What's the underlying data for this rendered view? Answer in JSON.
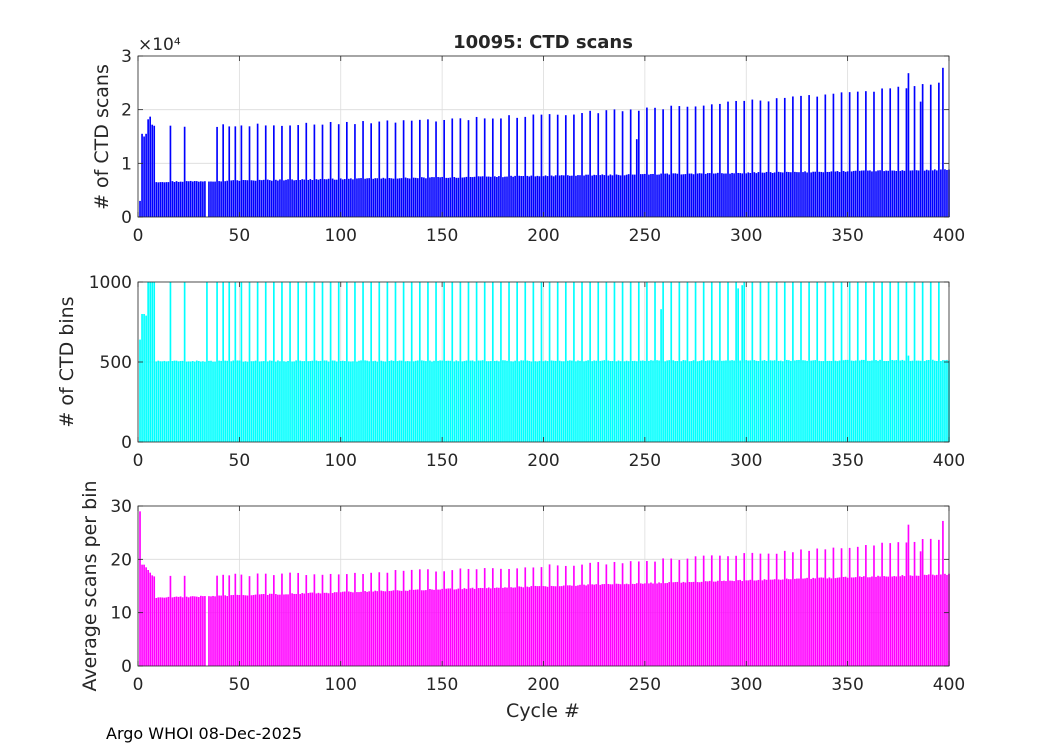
{
  "figure": {
    "footer": "Argo WHOI 08-Dec-2025"
  },
  "chart_data": [
    {
      "type": "bar",
      "title": "10095: CTD scans",
      "xlabel": "",
      "ylabel": "# of CTD scans",
      "xlim": [
        0,
        400
      ],
      "ylim": [
        0,
        3
      ],
      "xticks": [
        0,
        50,
        100,
        150,
        200,
        250,
        300,
        350,
        400
      ],
      "yticks": [
        0,
        1,
        2,
        3
      ],
      "yticklabels": [
        "0",
        "1",
        "2",
        "3"
      ],
      "exponent_label": "×10⁴",
      "color": "#0000ff",
      "grid": true,
      "series_description": "cycles 1-400; mostly ~0.65-0.88 (×10^4) rising with cycle, with periodic spikes ~1.7 rising to ~2.8",
      "base": {
        "start": 0.65,
        "end": 0.88
      },
      "spike": {
        "start": 1.7,
        "end": 2.5
      },
      "early_values": [
        {
          "x": 1,
          "v": 0.3
        },
        {
          "x": 2,
          "v": 1.55
        },
        {
          "x": 3,
          "v": 1.5
        },
        {
          "x": 4,
          "v": 1.55
        },
        {
          "x": 5,
          "v": 1.82
        },
        {
          "x": 6,
          "v": 1.87
        },
        {
          "x": 7,
          "v": 1.72
        },
        {
          "x": 8,
          "v": 1.7
        }
      ],
      "notable": [
        {
          "x": 246,
          "v": 1.45
        },
        {
          "x": 380,
          "v": 2.68
        },
        {
          "x": 386,
          "v": 2.15
        },
        {
          "x": 397,
          "v": 2.78
        }
      ]
    },
    {
      "type": "bar",
      "title": "",
      "xlabel": "",
      "ylabel": "# of CTD bins",
      "xlim": [
        0,
        400
      ],
      "ylim": [
        0,
        1000
      ],
      "xticks": [
        0,
        50,
        100,
        150,
        200,
        250,
        300,
        350,
        400
      ],
      "yticks": [
        0,
        500,
        1000
      ],
      "yticklabels": [
        "0",
        "500",
        "1000"
      ],
      "color": "#00ffff",
      "grid": true,
      "series_description": "mostly ~505 bins per cycle with periodic spikes clipped at top (>1000)",
      "base": {
        "start": 505,
        "end": 510
      },
      "spike": {
        "start": 1100,
        "end": 1100
      },
      "early_values": [
        {
          "x": 1,
          "v": 640
        },
        {
          "x": 2,
          "v": 800
        },
        {
          "x": 3,
          "v": 800
        },
        {
          "x": 4,
          "v": 790
        },
        {
          "x": 5,
          "v": 1100
        },
        {
          "x": 6,
          "v": 1100
        },
        {
          "x": 7,
          "v": 1100
        },
        {
          "x": 8,
          "v": 1100
        }
      ],
      "notable": [
        {
          "x": 258,
          "v": 830
        },
        {
          "x": 296,
          "v": 960
        },
        {
          "x": 298,
          "v": 980
        },
        {
          "x": 380,
          "v": 540
        }
      ]
    },
    {
      "type": "bar",
      "title": "",
      "xlabel": "Cycle #",
      "ylabel": "Average scans per bin",
      "xlim": [
        0,
        400
      ],
      "ylim": [
        0,
        30
      ],
      "xticks": [
        0,
        50,
        100,
        150,
        200,
        250,
        300,
        350,
        400
      ],
      "yticks": [
        0,
        10,
        20,
        30
      ],
      "yticklabels": [
        "0",
        "10",
        "20",
        "30"
      ],
      "color": "#ff00ff",
      "grid": true,
      "series_description": "mostly ~12.7-17.2 rising with cycle, with periodic spikes ~17 rising to ~27",
      "base": {
        "start": 12.7,
        "end": 17.2
      },
      "spike": {
        "start": 17.0,
        "end": 24.0
      },
      "early_values": [
        {
          "x": 1,
          "v": 29
        },
        {
          "x": 2,
          "v": 19
        },
        {
          "x": 3,
          "v": 19
        },
        {
          "x": 4,
          "v": 18.5
        },
        {
          "x": 5,
          "v": 18
        },
        {
          "x": 6,
          "v": 17.5
        },
        {
          "x": 7,
          "v": 17
        },
        {
          "x": 8,
          "v": 16.8
        }
      ],
      "notable": [
        {
          "x": 380,
          "v": 26.5
        },
        {
          "x": 386,
          "v": 21.5
        },
        {
          "x": 397,
          "v": 27.2
        }
      ]
    }
  ]
}
